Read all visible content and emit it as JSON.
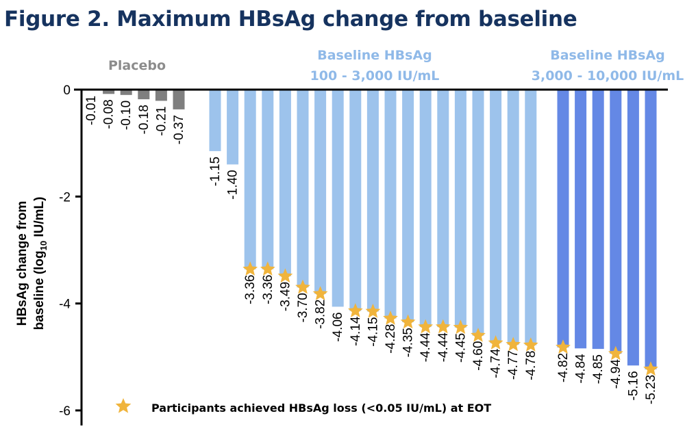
{
  "figure_title": "Figure 2. Maximum HBsAg change from baseline",
  "chart_data": {
    "type": "bar",
    "ylabel_line1": "HBsAg change from",
    "ylabel_line2_pre": "baseline (log",
    "ylabel_line2_sub": "10",
    "ylabel_line2_post": " IU/mL)",
    "ylim": [
      -6,
      0
    ],
    "yticks": [
      0,
      -2,
      -4,
      -6
    ],
    "grid": false,
    "groups": [
      {
        "label_lines": [
          "Placebo"
        ],
        "color": "#7f7f7f",
        "label_color": "#8c8c8c",
        "values": [
          -0.01,
          -0.08,
          -0.1,
          -0.18,
          -0.21,
          -0.37
        ],
        "labels": [
          "-0.01",
          "-0.08",
          "-0.10",
          "-0.18",
          "-0.21",
          "-0.37"
        ],
        "hbsag_loss": [
          false,
          false,
          false,
          false,
          false,
          false
        ]
      },
      {
        "label_lines": [
          "Baseline HBsAg",
          "100 - 3,000 IU/mL"
        ],
        "color": "#9dc3ec",
        "label_color": "#8fb9e8",
        "values": [
          -1.15,
          -1.4,
          -3.36,
          -3.36,
          -3.49,
          -3.7,
          -3.82,
          -4.06,
          -4.14,
          -4.15,
          -4.28,
          -4.35,
          -4.44,
          -4.44,
          -4.45,
          -4.6,
          -4.74,
          -4.77,
          -4.78
        ],
        "labels": [
          "-1.15",
          "-1.40",
          "-3.36",
          "-3.36",
          "-3.49",
          "-3.70",
          "-3.82",
          "-4.06",
          "-4.14",
          "-4.15",
          "-4.28",
          "-4.35",
          "-4.44",
          "-4.44",
          "-4.45",
          "-4.60",
          "-4.74",
          "-4.77",
          "-4.78"
        ],
        "hbsag_loss": [
          false,
          false,
          true,
          true,
          true,
          true,
          true,
          false,
          true,
          true,
          true,
          true,
          true,
          true,
          true,
          true,
          true,
          true,
          true
        ]
      },
      {
        "label_lines": [
          "Baseline HBsAg",
          "3,000 - 10,000 IU/mL"
        ],
        "color": "#6488e5",
        "label_color": "#8fb9e8",
        "values": [
          -4.82,
          -4.84,
          -4.85,
          -4.94,
          -5.16,
          -5.23
        ],
        "labels": [
          "-4.82",
          "-4.84",
          "-4.85",
          "-4.94",
          "-5.16",
          "-5.23"
        ],
        "hbsag_loss": [
          true,
          false,
          false,
          true,
          false,
          true
        ]
      }
    ],
    "legend": {
      "text": "Participants achieved HBsAg loss (<0.05 IU/mL) at EOT",
      "marker_color": "#f0b43c",
      "position": "bottom-center"
    }
  }
}
